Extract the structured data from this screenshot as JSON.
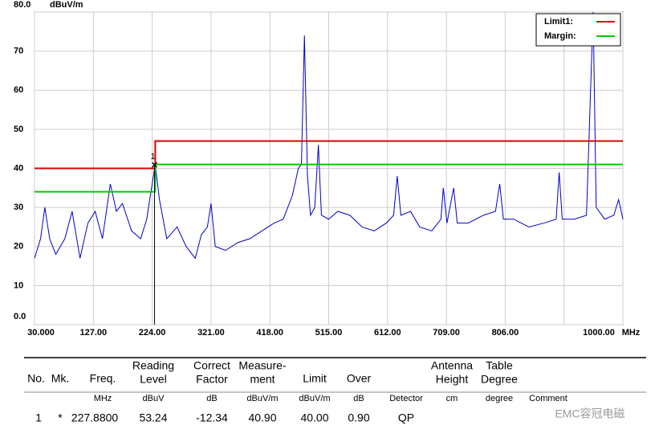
{
  "chart_data": {
    "type": "line",
    "y_axis_label": "dBuV/m",
    "x_axis_label": "MHz",
    "xlim": [
      30,
      1000
    ],
    "ylim": [
      0,
      80
    ],
    "xticks": [
      {
        "value": 30,
        "label": "30.000"
      },
      {
        "value": 127,
        "label": "127.00"
      },
      {
        "value": 224,
        "label": "224.00"
      },
      {
        "value": 321,
        "label": "321.00"
      },
      {
        "value": 418,
        "label": "418.00"
      },
      {
        "value": 515,
        "label": "515.00"
      },
      {
        "value": 612,
        "label": "612.00"
      },
      {
        "value": 709,
        "label": "709.00"
      },
      {
        "value": 806,
        "label": "806.00"
      },
      {
        "value": 903,
        "label": null
      },
      {
        "value": 1000,
        "label": "1000.00"
      }
    ],
    "yticks": [
      {
        "value": 0,
        "label": "0.0"
      },
      10,
      20,
      30,
      40,
      50,
      60,
      70,
      {
        "value": 80,
        "label": "80.0"
      }
    ],
    "grid": true,
    "legend": "top-right",
    "series": [
      {
        "color": "#0000cc",
        "x": [
          30,
          40,
          47,
          55,
          65,
          80,
          92,
          105,
          118,
          130,
          142,
          155,
          165,
          175,
          190,
          205,
          215,
          222,
          229,
          236,
          248,
          265,
          280,
          295,
          305,
          315,
          321,
          328,
          345,
          365,
          385,
          405,
          425,
          440,
          455,
          465,
          470,
          475,
          480,
          485,
          492,
          498,
          503,
          515,
          530,
          550,
          570,
          590,
          610,
          622,
          628,
          634,
          650,
          665,
          685,
          700,
          704,
          710,
          721,
          727,
          745,
          770,
          790,
          797,
          803,
          820,
          845,
          870,
          890,
          895,
          900,
          920,
          940,
          951,
          956,
          970,
          985,
          993,
          1000
        ],
        "values": [
          17,
          22,
          30,
          22,
          18,
          22,
          29,
          17,
          26,
          29,
          22,
          36,
          29,
          31,
          24,
          22,
          27,
          34,
          41,
          32,
          22,
          25,
          20,
          17,
          23,
          25,
          31,
          20,
          19,
          21,
          22,
          24,
          26,
          27,
          33,
          40,
          41,
          74,
          38,
          28,
          30,
          46,
          28,
          27,
          29,
          28,
          25,
          24,
          26,
          28,
          38,
          28,
          29,
          25,
          24,
          27,
          35,
          26,
          35,
          26,
          26,
          28,
          29,
          36,
          27,
          27,
          25,
          26,
          27,
          39,
          27,
          27,
          28,
          80,
          30,
          27,
          28,
          32,
          27
        ]
      },
      {
        "name": "Limit1:",
        "color": "#dd0000",
        "x": [
          30,
          229,
          229,
          1000
        ],
        "values": [
          40,
          40,
          47,
          47
        ]
      },
      {
        "name": "Margin:",
        "color": "#00cc00",
        "x": [
          30,
          229,
          229,
          1000
        ],
        "values": [
          34,
          34,
          41,
          41
        ]
      }
    ],
    "marker": {
      "label": "1",
      "x": 227.88,
      "y": 40.9
    }
  },
  "table": {
    "headers": [
      [
        "No."
      ],
      [
        "Mk."
      ],
      [
        "Freq."
      ],
      [
        "Reading",
        "Level"
      ],
      [
        "Correct",
        "Factor"
      ],
      [
        "Measure-",
        "ment"
      ],
      [
        "Limit"
      ],
      [
        "Over"
      ],
      null,
      [
        "Antenna",
        "Height"
      ],
      [
        "Table",
        "Degree"
      ],
      null
    ],
    "units": [
      null,
      null,
      "MHz",
      "dBuV",
      "dB",
      "dBuV/m",
      "dBuV/m",
      "dB",
      "Detector",
      "cm",
      "degree",
      "Comment"
    ],
    "rows": [
      [
        "1",
        "*",
        "227.8800",
        "53.24",
        "-12.34",
        "40.90",
        "40.00",
        "0.90",
        "QP"
      ]
    ]
  },
  "watermark": "EMC容冠电磁"
}
